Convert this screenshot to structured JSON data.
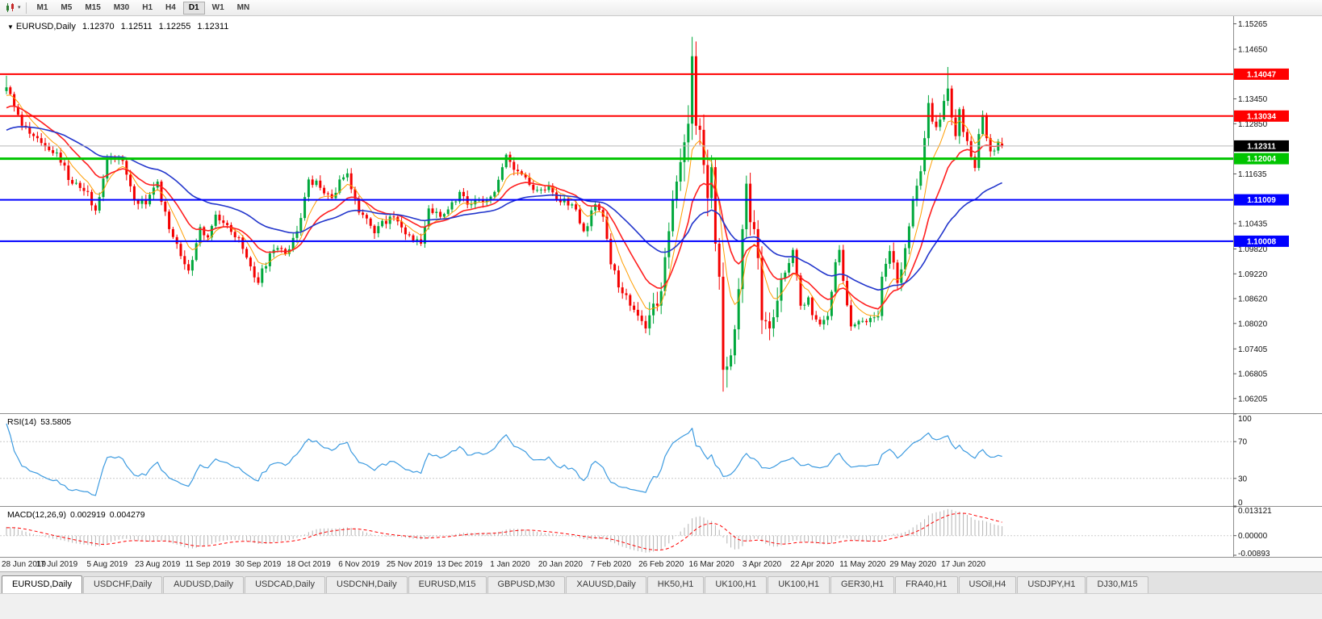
{
  "icons": {
    "title_caret": "▼",
    "toolbar_caret": "▾"
  },
  "toolbar": {
    "timeframes": [
      "M1",
      "M5",
      "M15",
      "M30",
      "H1",
      "H4",
      "D1",
      "W1",
      "MN"
    ],
    "active": "D1"
  },
  "chart": {
    "symbol_tf": "EURUSD,Daily",
    "open": "1.12370",
    "high": "1.12511",
    "low": "1.12255",
    "close": "1.12311"
  },
  "colors": {
    "up": "#00a83c",
    "down": "#f40000",
    "axis_line": "#8f8f8f",
    "axis_text": "#111111"
  },
  "chart_data": {
    "type": "candlestick",
    "symbol": "EURUSD",
    "timeframe": "Daily",
    "y_range": [
      1.0585,
      1.1545
    ],
    "y_ticks": [
      "1.15265",
      "1.14650",
      "1.13450",
      "1.12850",
      "1.11635",
      "1.10435",
      "1.09820",
      "1.09220",
      "1.08620",
      "1.08020",
      "1.07405",
      "1.06805",
      "1.06205"
    ],
    "x_labels": [
      "28 Jun 2019",
      "17 Jul 2019",
      "5 Aug 2019",
      "23 Aug 2019",
      "11 Sep 2019",
      "30 Sep 2019",
      "18 Oct 2019",
      "6 Nov 2019",
      "25 Nov 2019",
      "13 Dec 2019",
      "1 Jan 2020",
      "20 Jan 2020",
      "7 Feb 2020",
      "26 Feb 2020",
      "16 Mar 2020",
      "3 Apr 2020",
      "22 Apr 2020",
      "11 May 2020",
      "29 May 2020",
      "17 Jun 2020"
    ],
    "x_label_start_index": 0,
    "x_label_step": 13,
    "candle_count": 258,
    "price_anchors": [
      [
        -60,
        1.121
      ],
      [
        -45,
        1.1155
      ],
      [
        -30,
        1.1185
      ],
      [
        -18,
        1.124
      ],
      [
        -10,
        1.13
      ],
      [
        -4,
        1.1355
      ],
      [
        0,
        1.1373
      ],
      [
        4,
        1.128
      ],
      [
        8,
        1.125
      ],
      [
        13,
        1.1215
      ],
      [
        17,
        1.114
      ],
      [
        21,
        1.112
      ],
      [
        23,
        1.1075
      ],
      [
        26,
        1.12
      ],
      [
        30,
        1.1195
      ],
      [
        33,
        1.11
      ],
      [
        36,
        1.109
      ],
      [
        39,
        1.1145
      ],
      [
        42,
        1.103
      ],
      [
        45,
        1.0965
      ],
      [
        47,
        1.093
      ],
      [
        50,
        1.1035
      ],
      [
        52,
        1.101
      ],
      [
        54,
        1.1065
      ],
      [
        57,
        1.104
      ],
      [
        60,
        1.101
      ],
      [
        63,
        1.094
      ],
      [
        65,
        1.09
      ],
      [
        66,
        1.0935
      ],
      [
        69,
        1.098
      ],
      [
        72,
        1.097
      ],
      [
        75,
        1.1025
      ],
      [
        78,
        1.115
      ],
      [
        81,
        1.113
      ],
      [
        84,
        1.1105
      ],
      [
        86,
        1.115
      ],
      [
        88,
        1.1165
      ],
      [
        91,
        1.107
      ],
      [
        95,
        1.102
      ],
      [
        97,
        1.105
      ],
      [
        100,
        1.106
      ],
      [
        104,
        1.1015
      ],
      [
        107,
        1.0995
      ],
      [
        109,
        1.108
      ],
      [
        112,
        1.106
      ],
      [
        115,
        1.1095
      ],
      [
        117,
        1.112
      ],
      [
        120,
        1.109
      ],
      [
        123,
        1.1095
      ],
      [
        126,
        1.112
      ],
      [
        129,
        1.121
      ],
      [
        132,
        1.117
      ],
      [
        134,
        1.1155
      ],
      [
        137,
        1.1125
      ],
      [
        140,
        1.1135
      ],
      [
        143,
        1.1095
      ],
      [
        146,
        1.109
      ],
      [
        149,
        1.1025
      ],
      [
        152,
        1.109
      ],
      [
        154,
        1.106
      ],
      [
        156,
        1.0945
      ],
      [
        159,
        1.0875
      ],
      [
        162,
        1.0835
      ],
      [
        165,
        1.079
      ],
      [
        167,
        1.085
      ],
      [
        169,
        1.088
      ],
      [
        171,
        1.1025
      ],
      [
        173,
        1.1145
      ],
      [
        175,
        1.124
      ],
      [
        176,
        1.1285
      ],
      [
        177,
        1.1448
      ],
      [
        178,
        1.128
      ],
      [
        179,
        1.127
      ],
      [
        180,
        1.1185
      ],
      [
        181,
        1.1105
      ],
      [
        182,
        1.118
      ],
      [
        183,
        1.0995
      ],
      [
        184,
        1.0915
      ],
      [
        185,
        1.069
      ],
      [
        186,
        1.0698
      ],
      [
        187,
        1.0725
      ],
      [
        188,
        1.0788
      ],
      [
        189,
        1.0885
      ],
      [
        190,
        1.103
      ],
      [
        191,
        1.114
      ],
      [
        192,
        1.1047
      ],
      [
        193,
        1.103
      ],
      [
        194,
        1.096
      ],
      [
        195,
        1.081
      ],
      [
        197,
        1.079
      ],
      [
        199,
        1.0857
      ],
      [
        201,
        1.0925
      ],
      [
        203,
        1.098
      ],
      [
        205,
        1.0845
      ],
      [
        207,
        1.0865
      ],
      [
        208,
        1.0822
      ],
      [
        210,
        1.08
      ],
      [
        212,
        1.082
      ],
      [
        214,
        1.095
      ],
      [
        215,
        1.098
      ],
      [
        216,
        1.0905
      ],
      [
        218,
        1.0795
      ],
      [
        221,
        1.0808
      ],
      [
        223,
        1.0815
      ],
      [
        225,
        1.082
      ],
      [
        226,
        1.0915
      ],
      [
        228,
        1.0977
      ],
      [
        230,
        1.09
      ],
      [
        232,
        1.0984
      ],
      [
        234,
        1.11
      ],
      [
        235,
        1.1135
      ],
      [
        236,
        1.117
      ],
      [
        237,
        1.125
      ],
      [
        238,
        1.1335
      ],
      [
        239,
        1.129
      ],
      [
        241,
        1.1295
      ],
      [
        242,
        1.134
      ],
      [
        243,
        1.137
      ],
      [
        244,
        1.13
      ],
      [
        245,
        1.1255
      ],
      [
        246,
        1.132
      ],
      [
        247,
        1.1265
      ],
      [
        248,
        1.1243
      ],
      [
        249,
        1.1205
      ],
      [
        250,
        1.1178
      ],
      [
        251,
        1.126
      ],
      [
        252,
        1.1306
      ],
      [
        253,
        1.125
      ],
      [
        254,
        1.1218
      ],
      [
        255,
        1.122
      ],
      [
        256,
        1.1242
      ],
      [
        257,
        1.12311
      ]
    ],
    "extremes": [
      {
        "i": 0,
        "high": 1.1401
      },
      {
        "i": 177,
        "high": 1.1495
      },
      {
        "i": 185,
        "low": 1.0637
      },
      {
        "i": 243,
        "high": 1.1422
      }
    ],
    "last_candle": {
      "open": 1.1237,
      "high": 1.12511,
      "low": 1.12255,
      "close": 1.12311
    },
    "h_lines": [
      {
        "price": 1.14047,
        "label": "1.14047",
        "color": "#ff0000",
        "width": 2,
        "role": "resistance-line"
      },
      {
        "price": 1.13034,
        "label": "1.13034",
        "color": "#ff0000",
        "width": 2,
        "role": "resistance-line"
      },
      {
        "price": 1.12311,
        "label": "1.12311",
        "color": "#b8b8b8",
        "width": 1,
        "badge": "#000000",
        "role": "current-price-line"
      },
      {
        "price": 1.12004,
        "label": "1.12004",
        "color": "#00c400",
        "width": 3,
        "role": "support-line"
      },
      {
        "price": 1.11009,
        "label": "1.11009",
        "color": "#0000ff",
        "width": 2,
        "role": "support-line"
      },
      {
        "price": 1.10008,
        "label": "1.10008",
        "color": "#0000ff",
        "width": 2,
        "role": "support-line"
      }
    ],
    "moving_averages": [
      {
        "type": "EMA",
        "period": 7,
        "color": "#ff9d00",
        "width": 1
      },
      {
        "type": "EMA",
        "period": 16,
        "color": "#ff2020",
        "width": 1.6
      },
      {
        "type": "EMA",
        "period": 42,
        "color": "#2336cc",
        "width": 1.6
      }
    ],
    "indicators": {
      "rsi": {
        "label": "RSI(14)",
        "period": 14,
        "current": "53.5805",
        "ticks": [
          "100",
          "70",
          "30",
          "0"
        ],
        "levels": [
          70,
          30
        ],
        "range": [
          0,
          100
        ],
        "color": "#3d9be0"
      },
      "macd": {
        "label": "MACD(12,26,9)",
        "value": "0.002919",
        "signal_value": "0.004279",
        "ticks": [
          "0.013121",
          "0.00000",
          "-0.00893"
        ],
        "range": [
          -0.00893,
          0.013121
        ],
        "hist_color": "#b4b4b4",
        "signal_color": "#ff0000"
      }
    }
  },
  "tabs": {
    "items": [
      {
        "label": "EURUSD,Daily",
        "active": true
      },
      {
        "label": "USDCHF,Daily",
        "active": false
      },
      {
        "label": "AUDUSD,Daily",
        "active": false
      },
      {
        "label": "USDCAD,Daily",
        "active": false
      },
      {
        "label": "USDCNH,Daily",
        "active": false
      },
      {
        "label": "EURUSD,M15",
        "active": false
      },
      {
        "label": "GBPUSD,M30",
        "active": false
      },
      {
        "label": "XAUUSD,Daily",
        "active": false
      },
      {
        "label": "HK50,H1",
        "active": false
      },
      {
        "label": "UK100,H1",
        "active": false
      },
      {
        "label": "UK100,H1",
        "active": false
      },
      {
        "label": "GER30,H1",
        "active": false
      },
      {
        "label": "FRA40,H1",
        "active": false
      },
      {
        "label": "USOil,H4",
        "active": false
      },
      {
        "label": "USDJPY,H1",
        "active": false
      },
      {
        "label": "DJ30,M15",
        "active": false
      }
    ]
  }
}
